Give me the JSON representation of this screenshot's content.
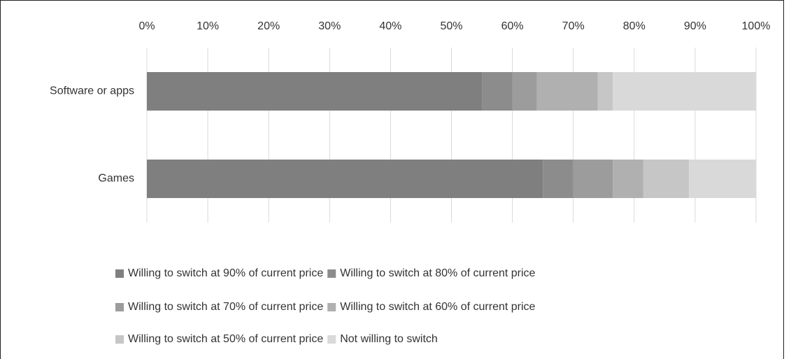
{
  "chart_data": {
    "type": "bar",
    "orientation": "horizontal",
    "stacked": true,
    "categories": [
      "Software or apps",
      "Games"
    ],
    "series": [
      {
        "name": "Willing to switch at 90% of current price",
        "color": "#7f7f7f",
        "values": [
          55,
          65
        ]
      },
      {
        "name": "Willing to switch at 80% of current price",
        "color": "#8c8c8c",
        "values": [
          5,
          5
        ]
      },
      {
        "name": "Willing to switch at 70% of current price",
        "color": "#9c9c9c",
        "values": [
          4,
          6.5
        ]
      },
      {
        "name": "Willing to switch at 60% of current price",
        "color": "#b0b0b0",
        "values": [
          10,
          5
        ]
      },
      {
        "name": "Willing to switch at 50% of current price",
        "color": "#c6c6c6",
        "values": [
          2.5,
          7.5
        ]
      },
      {
        "name": "Not willing to switch",
        "color": "#d9d9d9",
        "values": [
          23.5,
          11
        ]
      }
    ],
    "xlim": [
      0,
      100
    ],
    "xticks": [
      {
        "value": 0,
        "label": "0%"
      },
      {
        "value": 10,
        "label": "10%"
      },
      {
        "value": 20,
        "label": "20%"
      },
      {
        "value": 30,
        "label": "30%"
      },
      {
        "value": 40,
        "label": "40%"
      },
      {
        "value": 50,
        "label": "50%"
      },
      {
        "value": 60,
        "label": "60%"
      },
      {
        "value": 70,
        "label": "70%"
      },
      {
        "value": 80,
        "label": "80%"
      },
      {
        "value": 90,
        "label": "90%"
      },
      {
        "value": 100,
        "label": "100%"
      }
    ],
    "grid": true,
    "legend": "bottom"
  }
}
